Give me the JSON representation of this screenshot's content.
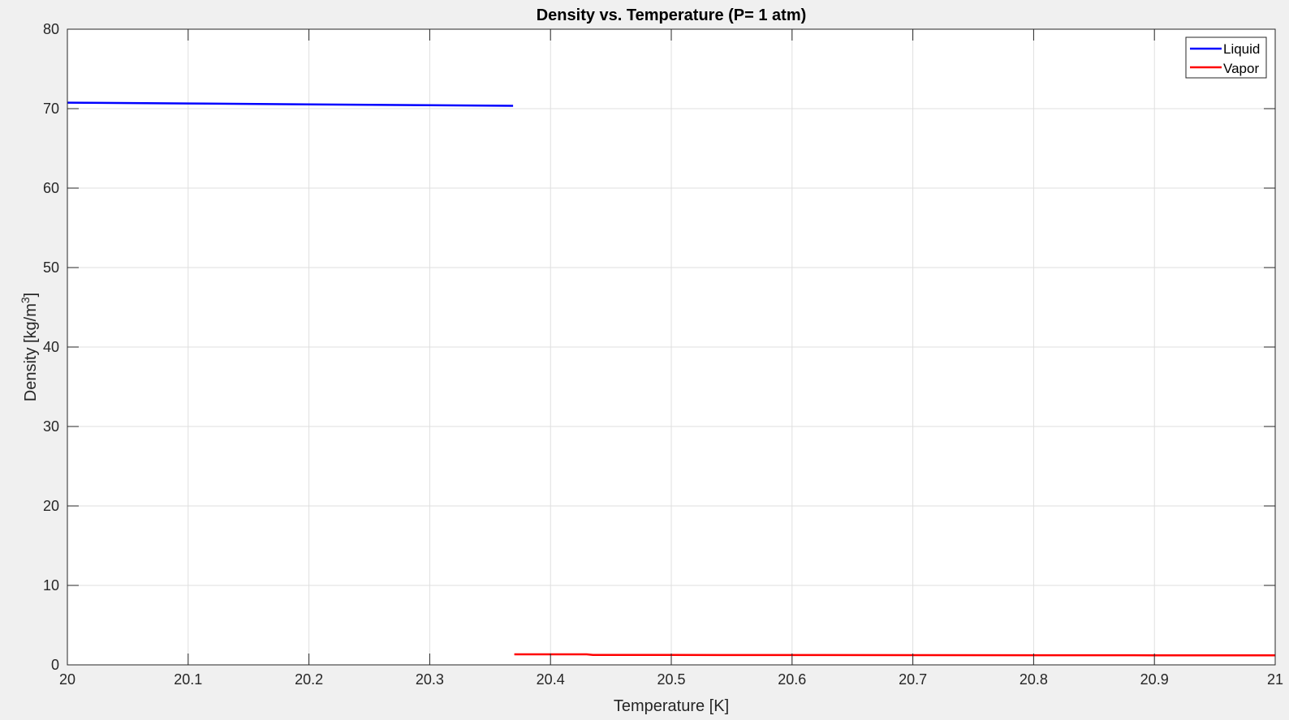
{
  "chart_data": {
    "type": "line",
    "title": "Density vs. Temperature (P= 1 atm)",
    "xlabel": "Temperature [K]",
    "ylabel_main": "Density [kg/m",
    "ylabel_sup": "3",
    "ylabel_close": "]",
    "xlim": [
      20,
      21
    ],
    "ylim": [
      0,
      80
    ],
    "xticks": [
      20,
      20.1,
      20.2,
      20.3,
      20.4,
      20.5,
      20.6,
      20.7,
      20.8,
      20.9,
      21
    ],
    "xtick_labels": [
      "20",
      "20.1",
      "20.2",
      "20.3",
      "20.4",
      "20.5",
      "20.6",
      "20.7",
      "20.8",
      "20.9",
      "21"
    ],
    "yticks": [
      0,
      10,
      20,
      30,
      40,
      50,
      60,
      70,
      80
    ],
    "ytick_labels": [
      "0",
      "10",
      "20",
      "30",
      "40",
      "50",
      "60",
      "70",
      "80"
    ],
    "grid": true,
    "legend_position": "top-right",
    "series": [
      {
        "name": "Liquid",
        "color": "#0000ff",
        "x": [
          20,
          20.1,
          20.2,
          20.3,
          20.369
        ],
        "y": [
          70.75,
          70.65,
          70.54,
          70.43,
          70.36
        ]
      },
      {
        "name": "Vapor",
        "color": "#ff0000",
        "x": [
          20.37,
          20.43,
          20.435,
          20.5,
          20.6,
          20.7,
          20.8,
          20.9,
          21
        ],
        "y": [
          1.33,
          1.33,
          1.25,
          1.24,
          1.23,
          1.22,
          1.21,
          1.2,
          1.19
        ]
      }
    ]
  }
}
